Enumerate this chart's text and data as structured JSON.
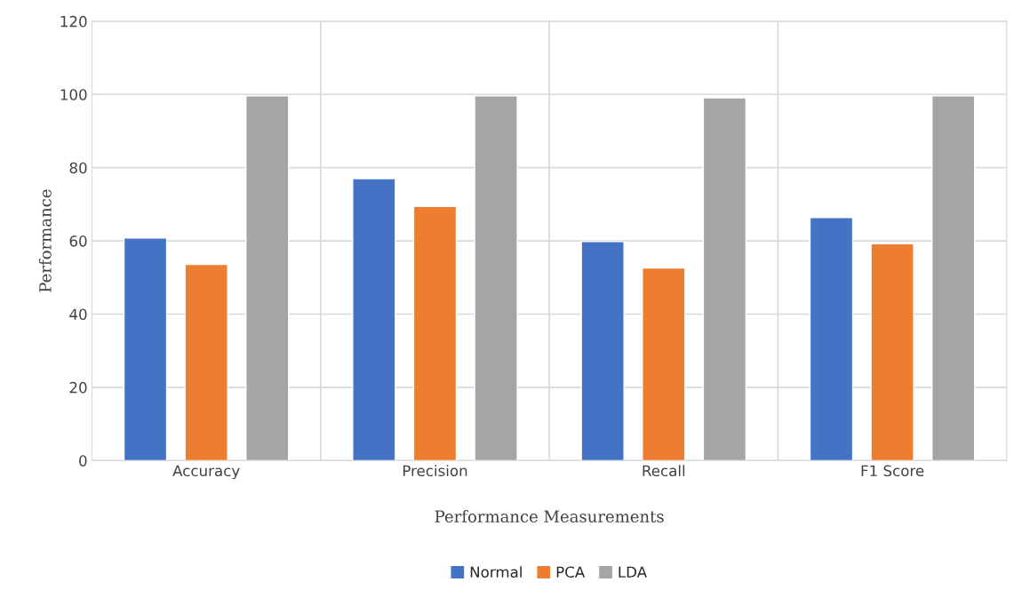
{
  "chart_data": {
    "type": "bar",
    "xlabel": "Performance Measurements",
    "ylabel": "Performance",
    "categories": [
      "Accuracy",
      "Precision",
      "Recall",
      "F1 Score"
    ],
    "series": [
      {
        "name": "Normal",
        "color": "#4472c4",
        "values": [
          60.8,
          77.0,
          59.8,
          66.4
        ]
      },
      {
        "name": "PCA",
        "color": "#ed7d31",
        "values": [
          53.6,
          69.4,
          52.6,
          59.2
        ]
      },
      {
        "name": "LDA",
        "color": "#a5a5a5",
        "values": [
          99.6,
          99.6,
          99.1,
          99.6
        ]
      }
    ],
    "ylim": [
      0,
      120
    ],
    "yticks": [
      0,
      20,
      40,
      60,
      80,
      100,
      120
    ],
    "grid": true,
    "legend": "bottom"
  }
}
